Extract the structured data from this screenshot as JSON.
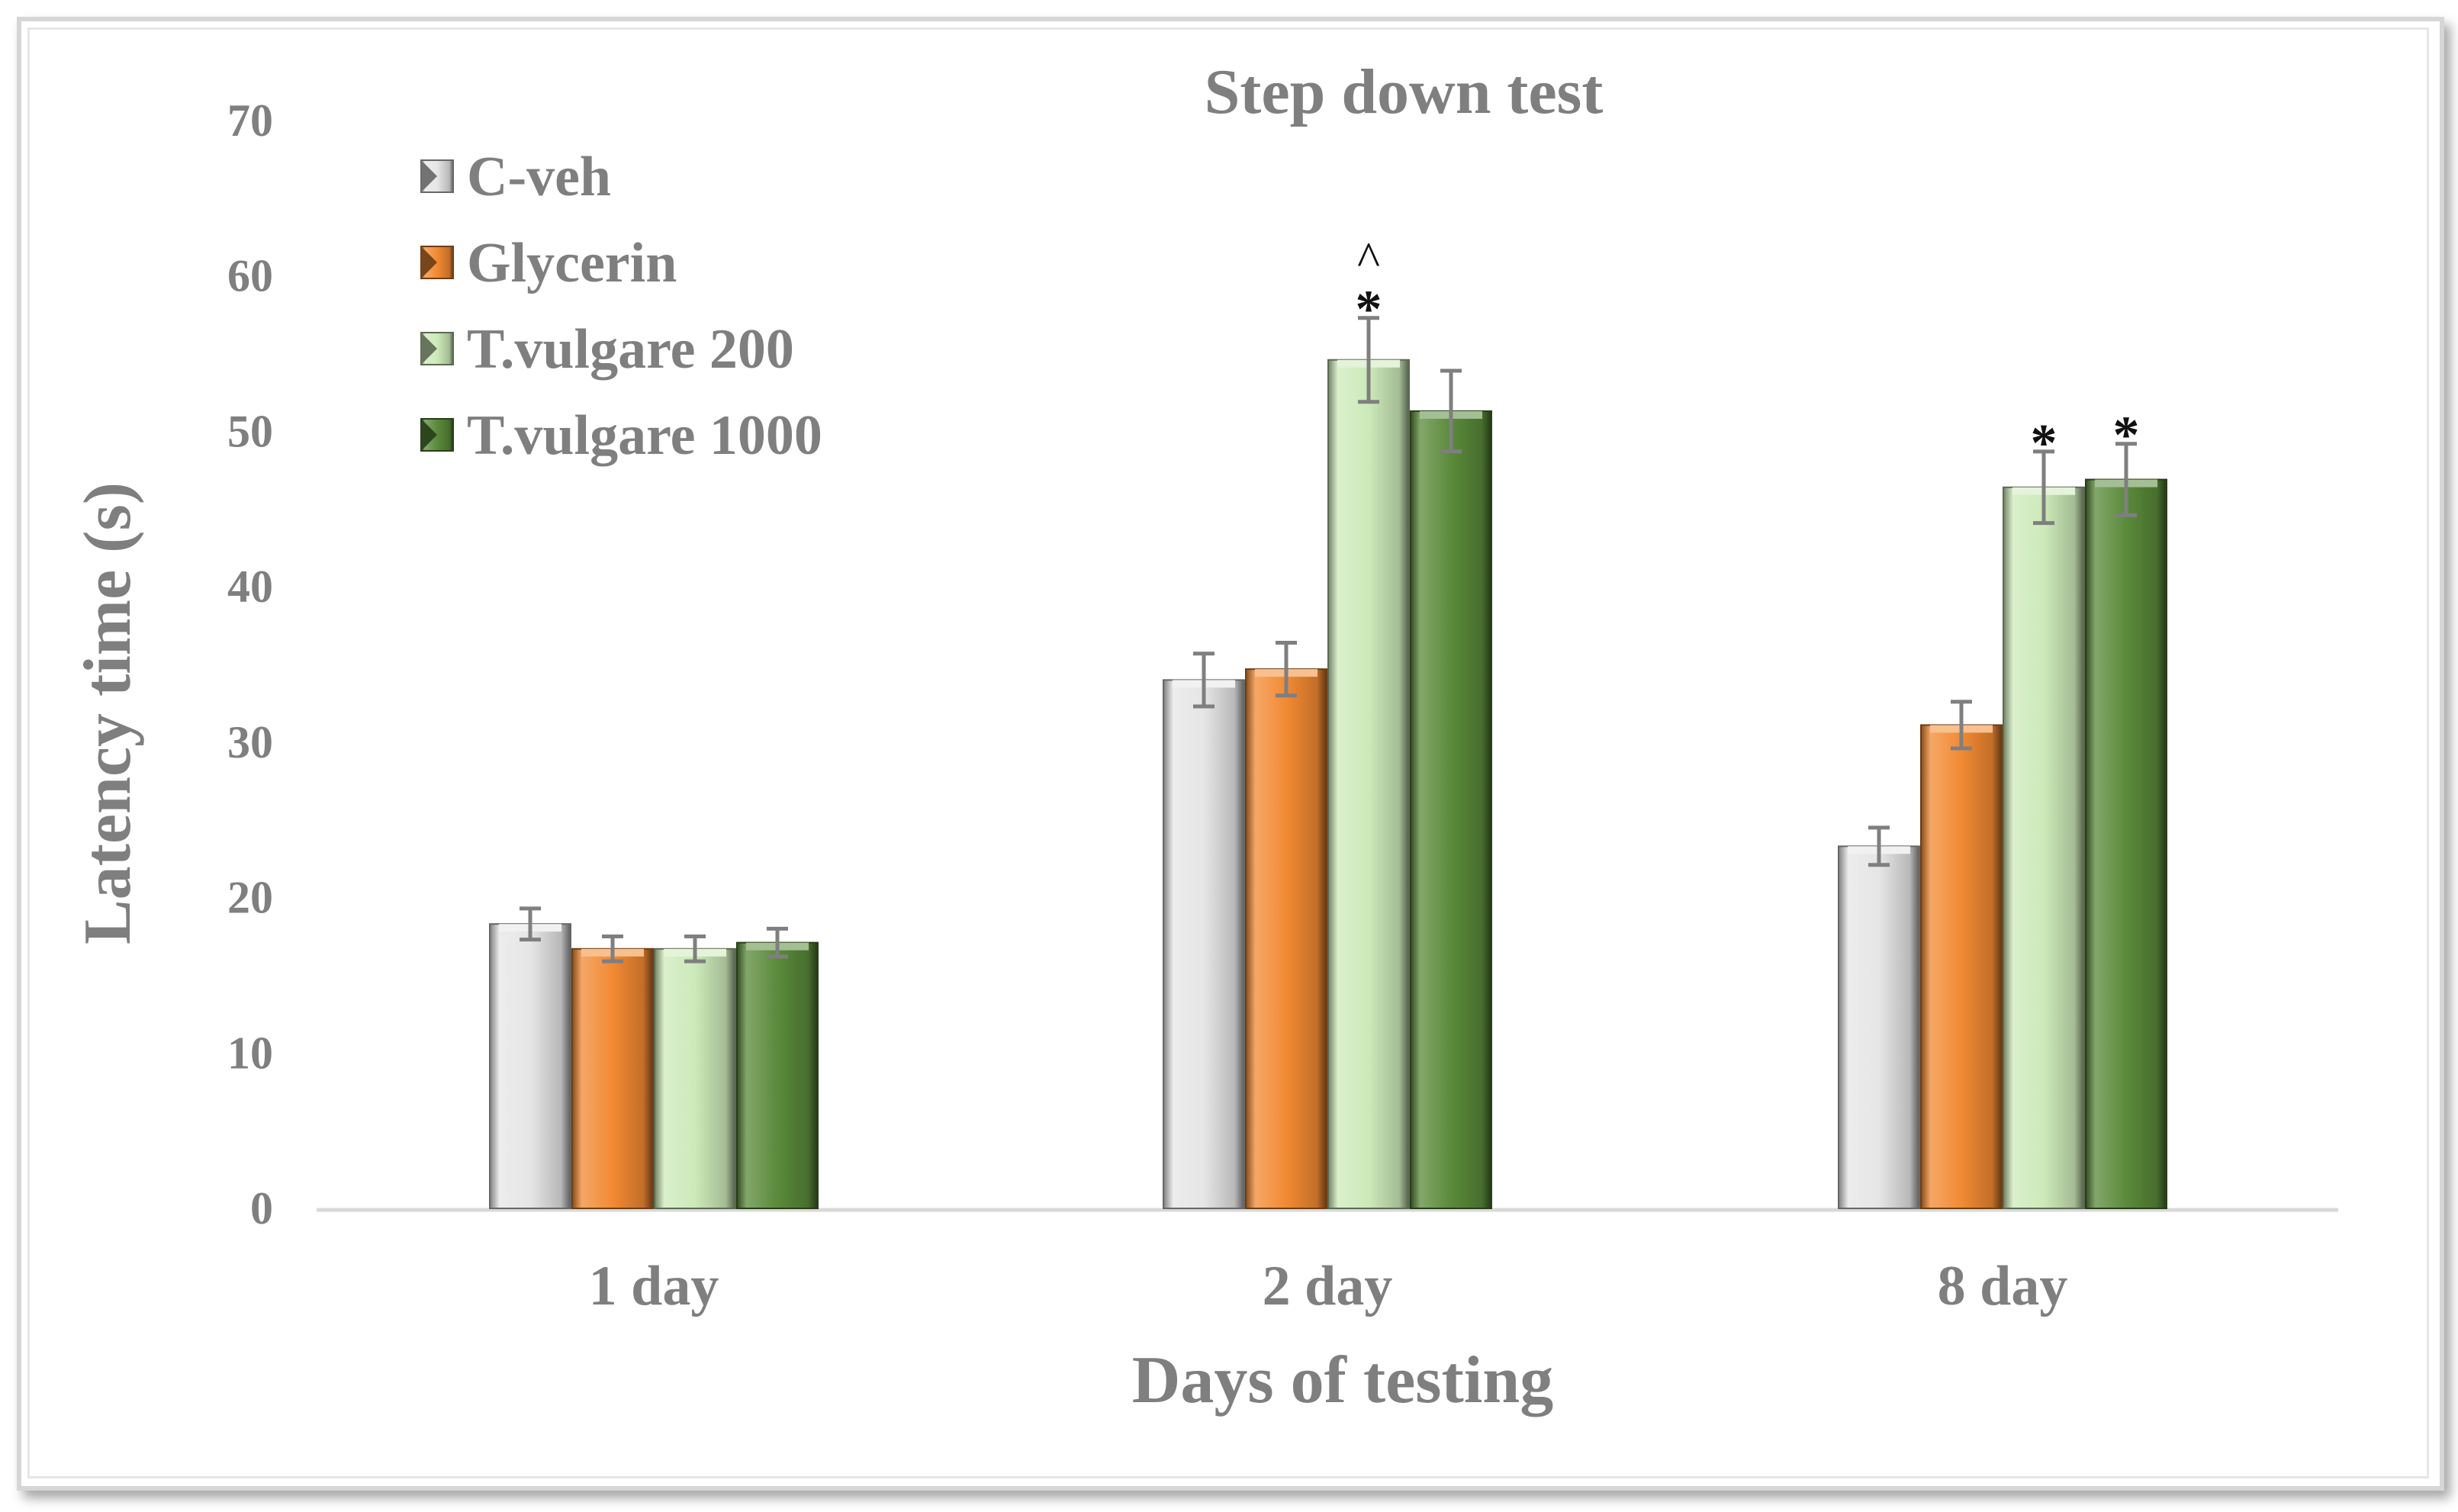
{
  "chart_data": {
    "type": "bar",
    "title": "Step down test",
    "xlabel": "Days of testing",
    "ylabel": "Latency time (s)",
    "ylim": [
      0,
      70
    ],
    "yticks": [
      0,
      10,
      20,
      30,
      40,
      50,
      60,
      70
    ],
    "categories": [
      "1 day",
      "2 day",
      "8 day"
    ],
    "legend_position": "top-left",
    "series": [
      {
        "name": "C-veh",
        "color": "#e6e6e6",
        "values": [
          18.3,
          34.0,
          23.3
        ],
        "errors": [
          1.0,
          1.7,
          1.2
        ]
      },
      {
        "name": "Glycerin",
        "color": "#f28a33",
        "values": [
          16.7,
          34.7,
          31.1
        ],
        "errors": [
          0.8,
          1.7,
          1.5
        ]
      },
      {
        "name": "T.vulgare 200",
        "color": "#cdeab9",
        "values": [
          16.7,
          54.6,
          46.4
        ],
        "errors": [
          0.8,
          2.7,
          2.3
        ]
      },
      {
        "name": "T.vulgare 1000",
        "color": "#5a8a3a",
        "values": [
          17.1,
          51.3,
          46.9
        ],
        "errors": [
          0.9,
          2.6,
          2.3
        ]
      }
    ],
    "annotations": [
      {
        "category": "2 day",
        "series": "T.vulgare 200",
        "marks": [
          "^",
          "*"
        ]
      },
      {
        "category": "8 day",
        "series": "T.vulgare 200",
        "marks": [
          "*"
        ]
      },
      {
        "category": "8 day",
        "series": "T.vulgare 1000",
        "marks": [
          "*"
        ]
      }
    ]
  }
}
